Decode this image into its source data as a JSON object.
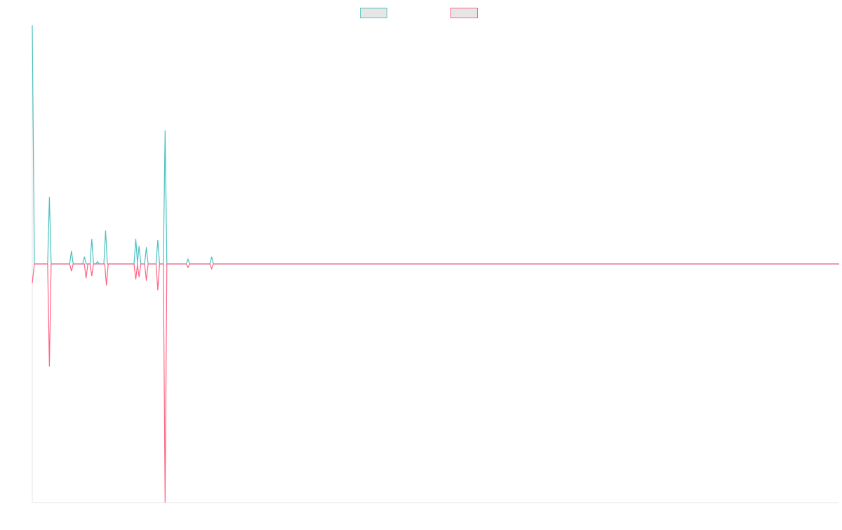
{
  "chart_data": {
    "type": "line",
    "title": "",
    "xlabel": "",
    "ylabel": "",
    "grid": false,
    "legend_position": "top-center",
    "ylim": [
      -100,
      100
    ],
    "x_count": 100,
    "series": [
      {
        "name": "",
        "color": "#4bc0c0",
        "values": [
          100,
          0,
          0,
          0,
          0,
          0,
          0,
          0,
          0,
          0,
          0,
          0,
          0,
          0,
          0,
          0,
          0,
          0,
          0,
          0,
          0,
          0,
          0,
          0,
          0,
          0,
          0,
          0,
          0,
          0,
          0,
          0,
          0,
          0,
          0,
          0,
          0,
          0,
          0,
          0,
          0,
          0,
          0,
          0,
          0,
          0,
          0,
          0,
          0,
          0,
          0,
          0,
          0,
          0,
          0,
          0,
          0,
          0,
          0,
          0,
          0,
          0,
          0,
          0,
          0,
          0,
          0,
          0,
          0,
          0,
          0,
          0,
          0,
          0,
          0,
          0,
          0,
          0,
          0,
          0,
          0,
          0,
          0,
          0,
          0,
          0,
          0,
          0,
          0,
          0,
          0,
          0,
          0,
          0,
          0,
          0,
          0,
          0,
          0,
          0
        ]
      },
      {
        "name": "",
        "color": "#ff6384",
        "values": [
          -8,
          0,
          0,
          0,
          0,
          0,
          0,
          0,
          0,
          0,
          0,
          0,
          0,
          0,
          0,
          0,
          0,
          0,
          0,
          0,
          0,
          0,
          0,
          0,
          0,
          0,
          0,
          0,
          0,
          0,
          0,
          0,
          0,
          0,
          0,
          0,
          0,
          0,
          0,
          0,
          0,
          0,
          0,
          0,
          0,
          0,
          0,
          0,
          0,
          0,
          0,
          0,
          0,
          0,
          0,
          0,
          0,
          0,
          0,
          0,
          0,
          0,
          0,
          0,
          0,
          0,
          0,
          0,
          0,
          0,
          0,
          0,
          0,
          0,
          0,
          0,
          0,
          0,
          0,
          0,
          0,
          0,
          0,
          0,
          0,
          0,
          0,
          0,
          0,
          0,
          0,
          0,
          0,
          0,
          0,
          0,
          0,
          0,
          0,
          0
        ]
      }
    ],
    "spikes": [
      {
        "series": 0,
        "at": 0.0,
        "value": 100
      },
      {
        "series": 0,
        "at": 2.1,
        "value": 28
      },
      {
        "series": 1,
        "at": 2.1,
        "value": -43
      },
      {
        "series": 0,
        "at": 4.8,
        "value": 5.5
      },
      {
        "series": 1,
        "at": 4.8,
        "value": -3
      },
      {
        "series": 0,
        "at": 6.4,
        "value": 3
      },
      {
        "series": 1,
        "at": 6.6,
        "value": -6
      },
      {
        "series": 0,
        "at": 7.3,
        "value": 10.5
      },
      {
        "series": 1,
        "at": 7.3,
        "value": -5
      },
      {
        "series": 0,
        "at": 8.0,
        "value": 1
      },
      {
        "series": 0,
        "at": 9.0,
        "value": 14
      },
      {
        "series": 1,
        "at": 9.1,
        "value": -9
      },
      {
        "series": 0,
        "at": 12.7,
        "value": 10.5
      },
      {
        "series": 1,
        "at": 12.7,
        "value": -6.5
      },
      {
        "series": 0,
        "at": 13.1,
        "value": 7.5
      },
      {
        "series": 1,
        "at": 13.1,
        "value": -5.5
      },
      {
        "series": 0,
        "at": 14.0,
        "value": 7
      },
      {
        "series": 1,
        "at": 14.0,
        "value": -7
      },
      {
        "series": 0,
        "at": 15.4,
        "value": 10
      },
      {
        "series": 1,
        "at": 15.4,
        "value": -11
      },
      {
        "series": 0,
        "at": 16.3,
        "value": 56
      },
      {
        "series": 1,
        "at": 16.3,
        "value": -100
      },
      {
        "series": 0,
        "at": 19.1,
        "value": 2
      },
      {
        "series": 1,
        "at": 19.1,
        "value": -1.5
      },
      {
        "series": 0,
        "at": 22.0,
        "value": 3
      },
      {
        "series": 1,
        "at": 22.0,
        "value": -2
      }
    ]
  }
}
